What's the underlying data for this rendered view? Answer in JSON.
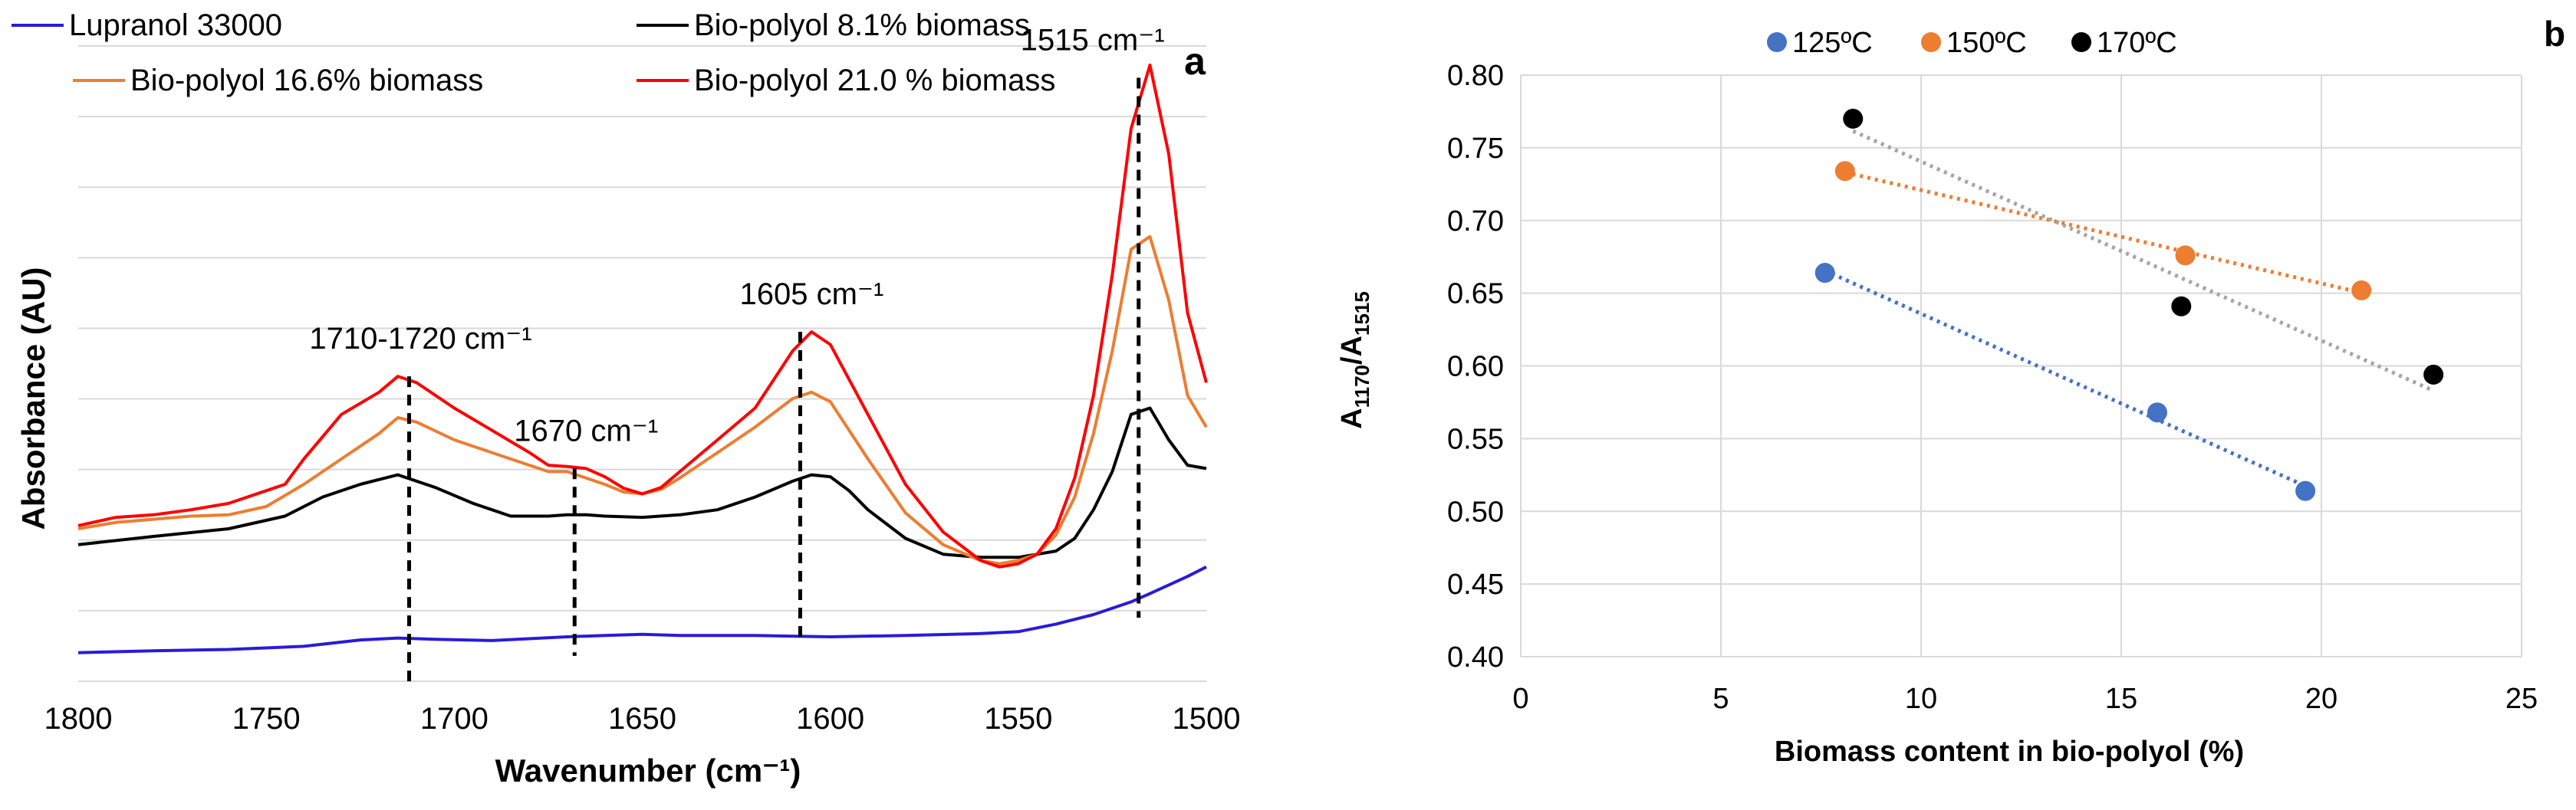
{
  "chart_data": [
    {
      "type": "line",
      "panel_label": "a",
      "xlabel": "Wavenumber (cm⁻¹)",
      "ylabel": "Absorbance (AU)",
      "xlim": [
        1800,
        1500
      ],
      "x_reversed": true,
      "xticks": [
        1800,
        1750,
        1700,
        1650,
        1600,
        1550,
        1500
      ],
      "ylim": [
        0,
        1
      ],
      "ytick_count": 9,
      "grid": true,
      "legend_position": "top",
      "series": [
        {
          "name": "Lupranol 33000",
          "color": "#2a1bd9",
          "x": [
            1800,
            1780,
            1760,
            1740,
            1725,
            1715,
            1705,
            1690,
            1670,
            1660,
            1650,
            1640,
            1620,
            1600,
            1580,
            1560,
            1550,
            1540,
            1530,
            1520,
            1515,
            1505,
            1500
          ],
          "y": [
            0.045,
            0.048,
            0.05,
            0.055,
            0.065,
            0.068,
            0.066,
            0.064,
            0.07,
            0.072,
            0.074,
            0.072,
            0.072,
            0.07,
            0.072,
            0.075,
            0.078,
            0.09,
            0.105,
            0.125,
            0.138,
            0.165,
            0.18
          ]
        },
        {
          "name": "Bio-polyol 8.1% biomass",
          "color": "#000000",
          "x": [
            1800,
            1780,
            1760,
            1745,
            1735,
            1725,
            1715,
            1705,
            1695,
            1685,
            1675,
            1670,
            1665,
            1660,
            1650,
            1640,
            1630,
            1620,
            1610,
            1605,
            1600,
            1595,
            1590,
            1580,
            1570,
            1560,
            1550,
            1540,
            1535,
            1530,
            1525,
            1520,
            1515,
            1510,
            1505,
            1500
          ],
          "y": [
            0.215,
            0.228,
            0.24,
            0.26,
            0.29,
            0.31,
            0.325,
            0.305,
            0.28,
            0.26,
            0.26,
            0.262,
            0.262,
            0.26,
            0.258,
            0.262,
            0.27,
            0.29,
            0.315,
            0.325,
            0.322,
            0.3,
            0.27,
            0.225,
            0.2,
            0.195,
            0.195,
            0.205,
            0.225,
            0.27,
            0.33,
            0.42,
            0.43,
            0.38,
            0.34,
            0.335
          ]
        },
        {
          "name": "Bio-polyol 16.6% biomass",
          "color": "#ed7d31",
          "x": [
            1800,
            1790,
            1780,
            1770,
            1760,
            1750,
            1740,
            1730,
            1720,
            1715,
            1710,
            1700,
            1690,
            1680,
            1675,
            1670,
            1665,
            1660,
            1655,
            1650,
            1645,
            1640,
            1630,
            1620,
            1610,
            1605,
            1600,
            1590,
            1580,
            1570,
            1560,
            1555,
            1550,
            1545,
            1540,
            1535,
            1530,
            1525,
            1520,
            1515,
            1510,
            1505,
            1500
          ],
          "y": [
            0.24,
            0.25,
            0.255,
            0.26,
            0.262,
            0.275,
            0.31,
            0.35,
            0.39,
            0.415,
            0.408,
            0.38,
            0.36,
            0.34,
            0.33,
            0.33,
            0.32,
            0.31,
            0.298,
            0.295,
            0.302,
            0.32,
            0.36,
            0.4,
            0.445,
            0.455,
            0.44,
            0.35,
            0.265,
            0.215,
            0.19,
            0.185,
            0.19,
            0.2,
            0.23,
            0.29,
            0.39,
            0.52,
            0.68,
            0.7,
            0.6,
            0.45,
            0.4
          ]
        },
        {
          "name": "Bio-polyol 21.0 % biomass",
          "color": "#ff0000",
          "x": [
            1800,
            1790,
            1780,
            1770,
            1760,
            1750,
            1745,
            1740,
            1730,
            1720,
            1715,
            1710,
            1700,
            1690,
            1680,
            1675,
            1670,
            1665,
            1660,
            1655,
            1650,
            1645,
            1640,
            1630,
            1620,
            1610,
            1605,
            1600,
            1590,
            1580,
            1570,
            1560,
            1555,
            1550,
            1545,
            1540,
            1535,
            1530,
            1525,
            1520,
            1515,
            1510,
            1505,
            1500
          ],
          "y": [
            0.245,
            0.258,
            0.262,
            0.27,
            0.28,
            0.3,
            0.31,
            0.35,
            0.42,
            0.455,
            0.48,
            0.47,
            0.43,
            0.395,
            0.36,
            0.34,
            0.338,
            0.335,
            0.322,
            0.304,
            0.295,
            0.305,
            0.33,
            0.38,
            0.43,
            0.52,
            0.55,
            0.53,
            0.42,
            0.31,
            0.235,
            0.19,
            0.18,
            0.185,
            0.2,
            0.24,
            0.32,
            0.45,
            0.64,
            0.87,
            0.97,
            0.83,
            0.58,
            0.47
          ]
        }
      ],
      "annotations": [
        {
          "label": "1710-1720 cm⁻¹",
          "x": 1712,
          "y_top": 0.48,
          "y_bottom": 0.0
        },
        {
          "label": "1670 cm⁻¹",
          "x": 1668,
          "y_top": 0.335,
          "y_bottom": 0.04
        },
        {
          "label": "1605 cm⁻¹",
          "x": 1608,
          "y_top": 0.55,
          "y_bottom": 0.06
        },
        {
          "label": "1515 cm⁻¹",
          "x": 1518,
          "y_top": 0.95,
          "y_bottom": 0.1
        }
      ]
    },
    {
      "type": "scatter",
      "panel_label": "b",
      "xlabel": "Biomass content in bio-polyol  (%)",
      "ylabel_main": "A",
      "ylabel_sub1": "1170",
      "ylabel_mid": "/A",
      "ylabel_sub2": "1515",
      "xlim": [
        0,
        25
      ],
      "ylim": [
        0.4,
        0.8
      ],
      "xticks": [
        0,
        5,
        10,
        15,
        20,
        25
      ],
      "yticks": [
        "0.40",
        "0.45",
        "0.50",
        "0.55",
        "0.60",
        "0.65",
        "0.70",
        "0.75",
        "0.80"
      ],
      "grid": true,
      "legend_position": "top",
      "series": [
        {
          "name": "125ºC",
          "color": "#4472c4",
          "trend_color": "#4472c4",
          "x": [
            7.6,
            15.9,
            19.6
          ],
          "y": [
            0.664,
            0.568,
            0.514
          ]
        },
        {
          "name": "150ºC",
          "color": "#ed7d31",
          "trend_color": "#ed7d31",
          "x": [
            8.1,
            16.6,
            21.0
          ],
          "y": [
            0.734,
            0.676,
            0.652
          ]
        },
        {
          "name": "170ºC",
          "color": "#000000",
          "trend_color": "#a5a5a5",
          "x": [
            8.3,
            16.5,
            22.8
          ],
          "y": [
            0.77,
            0.641,
            0.594
          ]
        }
      ]
    }
  ]
}
